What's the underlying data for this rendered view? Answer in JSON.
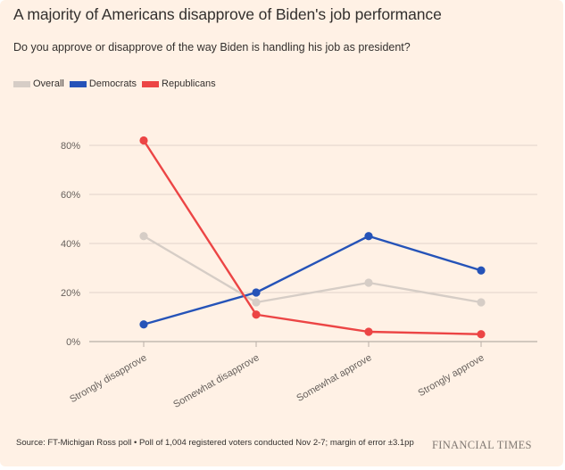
{
  "header": {
    "title": "A majority of Americans disapprove of Biden's job performance",
    "subtitle": "Do you approve or disapprove of the way Biden is handling his job as president?"
  },
  "legend": [
    {
      "label": "Overall",
      "color": "#d6cdc6"
    },
    {
      "label": "Democrats",
      "color": "#2553b8"
    },
    {
      "label": "Republicans",
      "color": "#ec4545"
    }
  ],
  "footer": {
    "source": "Source: FT-Michigan Ross poll • Poll of 1,004 registered voters conducted Nov 2-7; margin of error ±3.1pp",
    "brand": "FINANCIAL TIMES"
  },
  "chart_data": {
    "type": "line",
    "title": "A majority of Americans disapprove of Biden's job performance",
    "subtitle": "Do you approve or disapprove of the way Biden is handling his job as president?",
    "xlabel": "",
    "ylabel": "",
    "categories": [
      "Strongly disapprove",
      "Somewhat disapprove",
      "Somewhat approve",
      "Strongly approve"
    ],
    "series": [
      {
        "name": "Overall",
        "color": "#d6cdc6",
        "values": [
          43,
          16,
          24,
          16
        ]
      },
      {
        "name": "Democrats",
        "color": "#2553b8",
        "values": [
          7,
          20,
          43,
          29
        ]
      },
      {
        "name": "Republicans",
        "color": "#ec4545",
        "values": [
          82,
          11,
          4,
          3
        ]
      }
    ],
    "ylim": [
      0,
      80
    ],
    "yticks": [
      0,
      20,
      40,
      60,
      80
    ],
    "ytick_labels": [
      "0%",
      "20%",
      "40%",
      "60%",
      "80%"
    ],
    "grid": true,
    "legend_position": "top-left",
    "unit": "%"
  }
}
